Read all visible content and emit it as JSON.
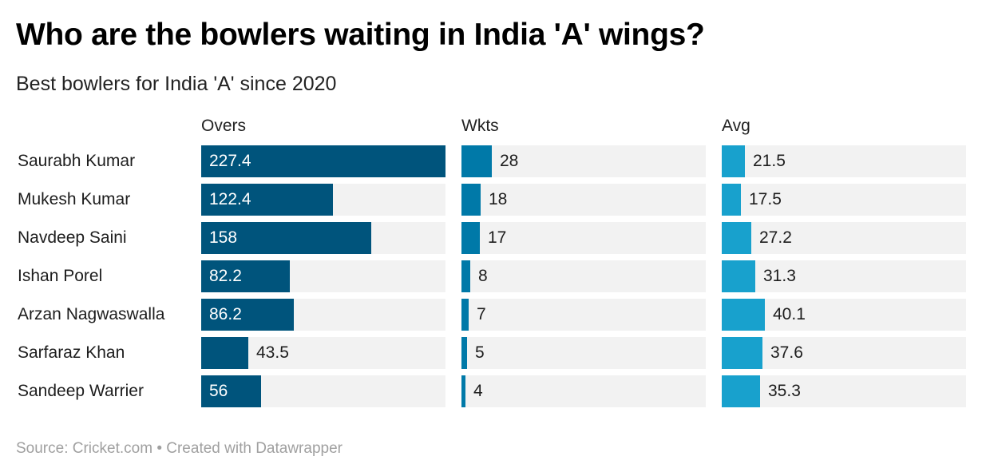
{
  "header": {
    "title": "Who are the bowlers waiting in India 'A' wings?",
    "subtitle": "Best bowlers for India 'A' since 2020"
  },
  "footer": {
    "source": "Source: Cricket.com • Created with Datawrapper"
  },
  "colors": {
    "overs": "#00547c",
    "wkts": "#0079a8",
    "avg": "#18a1cd",
    "track": "#f2f2f2"
  },
  "chart_data": {
    "type": "bar",
    "orientation": "horizontal",
    "title": "Who are the bowlers waiting in India 'A' wings?",
    "subtitle": "Best bowlers for India 'A' since 2020",
    "categories": [
      "Saurabh Kumar",
      "Mukesh Kumar",
      "Navdeep Saini",
      "Ishan Porel",
      "Arzan Nagwaswalla",
      "Sarfaraz Khan",
      "Sandeep Warrier"
    ],
    "series": [
      {
        "name": "Overs",
        "labels": [
          "227.4",
          "122.4",
          "158",
          "82.2",
          "86.2",
          "43.5",
          "56"
        ],
        "values": [
          227.4,
          122.4,
          158,
          82.2,
          86.2,
          43.5,
          56
        ]
      },
      {
        "name": "Wkts",
        "labels": [
          "28",
          "18",
          "17",
          "8",
          "7",
          "5",
          "4"
        ],
        "values": [
          28,
          18,
          17,
          8,
          7,
          5,
          4
        ]
      },
      {
        "name": "Avg",
        "labels": [
          "21.5",
          "17.5",
          "27.2",
          "31.3",
          "40.1",
          "37.6",
          "35.3"
        ],
        "values": [
          21.5,
          17.5,
          27.2,
          31.3,
          40.1,
          37.6,
          35.3
        ]
      }
    ],
    "xlim": [
      0,
      227.4
    ],
    "shared_scale": true,
    "grid": false,
    "legend": "none",
    "source": "Cricket.com"
  }
}
